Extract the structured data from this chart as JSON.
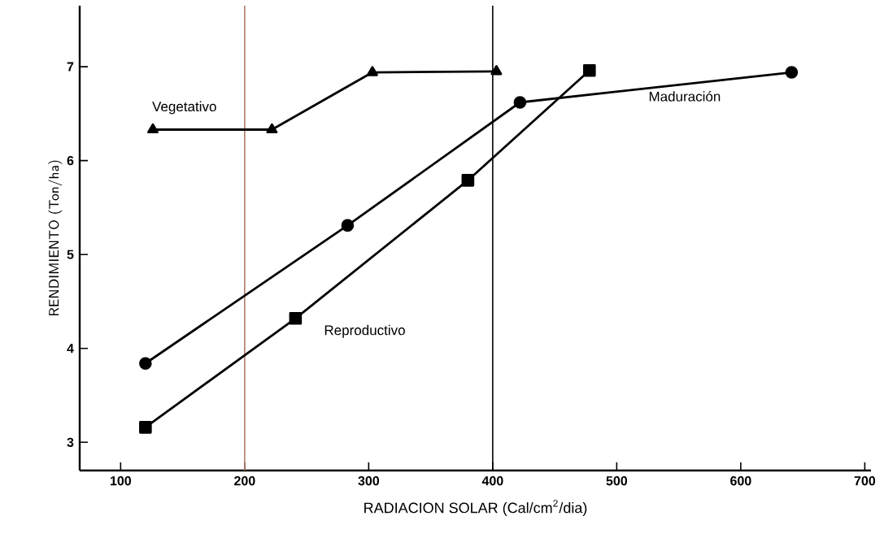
{
  "chart_data": {
    "type": "line",
    "xlabel": "RADIACION SOLAR (Cal/cm$^{2}$/dia)",
    "ylabel": "RENDIMIENTO (Ton/ha)",
    "xlim": [
      67,
      705
    ],
    "ylim": [
      2.7,
      7.65
    ],
    "xticks": [
      100,
      200,
      300,
      400,
      500,
      600,
      700
    ],
    "yticks": [
      3,
      4,
      5,
      6,
      7
    ],
    "grid": false,
    "series": [
      {
        "name": "Vegetativo",
        "color": "#000000",
        "marker": "triangle",
        "x": [
          126,
          222,
          303,
          403
        ],
        "values": [
          6.33,
          6.33,
          6.94,
          6.95
        ]
      },
      {
        "name": "Maduración",
        "color": "#000000",
        "marker": "circle",
        "x": [
          120,
          283,
          422,
          641
        ],
        "values": [
          3.84,
          5.31,
          6.62,
          6.94
        ]
      },
      {
        "name": "Reproductivo",
        "color": "#000000",
        "marker": "square",
        "x": [
          120,
          241,
          380,
          478
        ],
        "values": [
          3.16,
          4.32,
          5.79,
          6.96
        ]
      }
    ],
    "ref_lines": [
      {
        "axis": "x",
        "value": 200,
        "color": "#b07a6a"
      },
      {
        "axis": "x",
        "value": 400,
        "color": "#000000"
      }
    ]
  }
}
